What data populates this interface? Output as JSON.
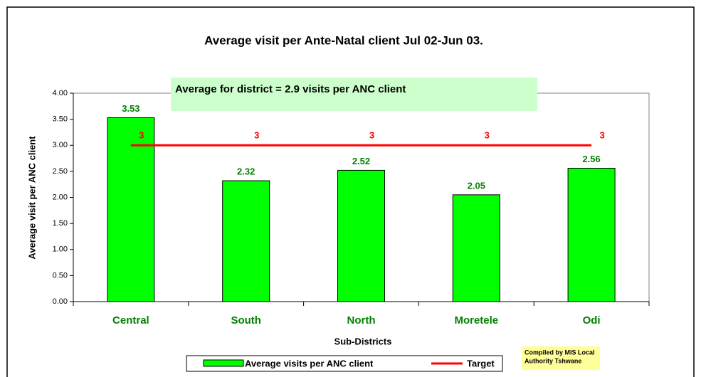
{
  "chart_data": {
    "type": "bar",
    "title": "Average visit per Ante-Natal client  Jul 02-Jun 03.",
    "annotation": "Average for district = 2.9  visits per ANC client",
    "credit": [
      "Compiled by MIS Local",
      "Authority Tshwane"
    ],
    "x_label": "Sub-Districts",
    "y_label": "Average visit per ANC client",
    "categories": [
      "Central",
      "South",
      "North",
      "Moretele",
      "Odi"
    ],
    "series": [
      {
        "name": "Average visits per ANC client",
        "type": "bar",
        "color": "#00ff00",
        "values": [
          3.53,
          2.32,
          2.52,
          2.05,
          2.56
        ]
      },
      {
        "name": "Target",
        "type": "line",
        "color": "#ff0000",
        "values": [
          3,
          3,
          3,
          3,
          3
        ]
      }
    ],
    "ylim": [
      0,
      4
    ],
    "yticks": [
      {
        "value": 0,
        "label": "0.00"
      },
      {
        "value": 0.5,
        "label": "0.50"
      },
      {
        "value": 1,
        "label": "1.00"
      },
      {
        "value": 1.5,
        "label": "1.50"
      },
      {
        "value": 2,
        "label": "2.00"
      },
      {
        "value": 2.5,
        "label": "2.50"
      },
      {
        "value": 3,
        "label": "3.00"
      },
      {
        "value": 3.5,
        "label": "3.50"
      },
      {
        "value": 4,
        "label": "4.00"
      }
    ],
    "legend": "bottom"
  }
}
